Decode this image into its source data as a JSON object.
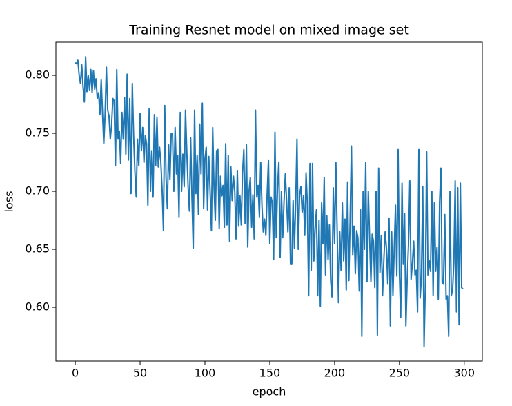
{
  "chart_data": {
    "type": "line",
    "title": "Training Resnet model on mixed image set",
    "xlabel": "epoch",
    "ylabel": "loss",
    "color": "#1f77b4",
    "xlim": [
      -14.95,
      313.95
    ],
    "ylim": [
      0.5536,
      0.8286
    ],
    "xticks": [
      0,
      50,
      100,
      150,
      200,
      250,
      300
    ],
    "yticks": [
      {
        "value": 0.6,
        "label": "0.60"
      },
      0.65,
      {
        "value": 0.7,
        "label": "0.70"
      },
      0.75,
      {
        "value": 0.8,
        "label": "0.80"
      }
    ],
    "x": [
      0,
      1,
      2,
      3,
      4,
      5,
      6,
      7,
      8,
      9,
      10,
      11,
      12,
      13,
      14,
      15,
      16,
      17,
      18,
      19,
      20,
      21,
      22,
      23,
      24,
      25,
      26,
      27,
      28,
      29,
      30,
      31,
      32,
      33,
      34,
      35,
      36,
      37,
      38,
      39,
      40,
      41,
      42,
      43,
      44,
      45,
      46,
      47,
      48,
      49,
      50,
      51,
      52,
      53,
      54,
      55,
      56,
      57,
      58,
      59,
      60,
      61,
      62,
      63,
      64,
      65,
      66,
      67,
      68,
      69,
      70,
      71,
      72,
      73,
      74,
      75,
      76,
      77,
      78,
      79,
      80,
      81,
      82,
      83,
      84,
      85,
      86,
      87,
      88,
      89,
      90,
      91,
      92,
      93,
      94,
      95,
      96,
      97,
      98,
      99,
      100,
      101,
      102,
      103,
      104,
      105,
      106,
      107,
      108,
      109,
      110,
      111,
      112,
      113,
      114,
      115,
      116,
      117,
      118,
      119,
      120,
      121,
      122,
      123,
      124,
      125,
      126,
      127,
      128,
      129,
      130,
      131,
      132,
      133,
      134,
      135,
      136,
      137,
      138,
      139,
      140,
      141,
      142,
      143,
      144,
      145,
      146,
      147,
      148,
      149,
      150,
      151,
      152,
      153,
      154,
      155,
      156,
      157,
      158,
      159,
      160,
      161,
      162,
      163,
      164,
      165,
      166,
      167,
      168,
      169,
      170,
      171,
      172,
      173,
      174,
      175,
      176,
      177,
      178,
      179,
      180,
      181,
      182,
      183,
      184,
      185,
      186,
      187,
      188,
      189,
      190,
      191,
      192,
      193,
      194,
      195,
      196,
      197,
      198,
      199,
      200,
      201,
      202,
      203,
      204,
      205,
      206,
      207,
      208,
      209,
      210,
      211,
      212,
      213,
      214,
      215,
      216,
      217,
      218,
      219,
      220,
      221,
      222,
      223,
      224,
      225,
      226,
      227,
      228,
      229,
      230,
      231,
      232,
      233,
      234,
      235,
      236,
      237,
      238,
      239,
      240,
      241,
      242,
      243,
      244,
      245,
      246,
      247,
      248,
      249,
      250,
      251,
      252,
      253,
      254,
      255,
      256,
      257,
      258,
      259,
      260,
      261,
      262,
      263,
      264,
      265,
      266,
      267,
      268,
      269,
      270,
      271,
      272,
      273,
      274,
      275,
      276,
      277,
      278,
      279,
      280,
      281,
      282,
      283,
      284,
      285,
      286,
      287,
      288,
      289,
      290,
      291,
      292,
      293,
      294,
      295,
      296,
      297,
      298,
      299
    ],
    "values": [
      0.811,
      0.81,
      0.813,
      0.8,
      0.793,
      0.809,
      0.79,
      0.777,
      0.816,
      0.786,
      0.8,
      0.787,
      0.805,
      0.785,
      0.804,
      0.788,
      0.797,
      0.78,
      0.785,
      0.766,
      0.796,
      0.768,
      0.741,
      0.766,
      0.807,
      0.77,
      0.765,
      0.745,
      0.757,
      0.78,
      0.778,
      0.722,
      0.805,
      0.745,
      0.752,
      0.724,
      0.768,
      0.745,
      0.781,
      0.732,
      0.801,
      0.727,
      0.78,
      0.698,
      0.793,
      0.748,
      0.717,
      0.695,
      0.745,
      0.722,
      0.767,
      0.735,
      0.755,
      0.725,
      0.748,
      0.741,
      0.688,
      0.771,
      0.7,
      0.735,
      0.695,
      0.766,
      0.722,
      0.764,
      0.721,
      0.738,
      0.725,
      0.701,
      0.666,
      0.774,
      0.712,
      0.685,
      0.74,
      0.71,
      0.75,
      0.75,
      0.7,
      0.755,
      0.715,
      0.731,
      0.678,
      0.768,
      0.7,
      0.732,
      0.704,
      0.77,
      0.735,
      0.705,
      0.683,
      0.746,
      0.694,
      0.651,
      0.77,
      0.698,
      0.731,
      0.68,
      0.758,
      0.715,
      0.776,
      0.685,
      0.728,
      0.738,
      0.684,
      0.73,
      0.7,
      0.666,
      0.755,
      0.704,
      0.675,
      0.735,
      0.736,
      0.668,
      0.713,
      0.696,
      0.705,
      0.669,
      0.741,
      0.671,
      0.731,
      0.657,
      0.721,
      0.692,
      0.713,
      0.7,
      0.659,
      0.718,
      0.67,
      0.696,
      0.671,
      0.716,
      0.736,
      0.672,
      0.74,
      0.652,
      0.7,
      0.712,
      0.669,
      0.697,
      0.659,
      0.77,
      0.695,
      0.705,
      0.678,
      0.725,
      0.687,
      0.665,
      0.676,
      0.662,
      0.698,
      0.727,
      0.655,
      0.695,
      0.69,
      0.641,
      0.751,
      0.66,
      0.703,
      0.725,
      0.643,
      0.7,
      0.66,
      0.691,
      0.715,
      0.692,
      0.665,
      0.703,
      0.637,
      0.637,
      0.692,
      0.651,
      0.69,
      0.745,
      0.65,
      0.697,
      0.704,
      0.682,
      0.696,
      0.662,
      0.716,
      0.688,
      0.61,
      0.724,
      0.632,
      0.724,
      0.64,
      0.668,
      0.684,
      0.61,
      0.675,
      0.601,
      0.69,
      0.655,
      0.712,
      0.628,
      0.679,
      0.641,
      0.671,
      0.623,
      0.609,
      0.703,
      0.655,
      0.725,
      0.665,
      0.604,
      0.665,
      0.632,
      0.69,
      0.64,
      0.676,
      0.615,
      0.708,
      0.623,
      0.676,
      0.739,
      0.645,
      0.67,
      0.629,
      0.666,
      0.66,
      0.614,
      0.684,
      0.575,
      0.7,
      0.65,
      0.725,
      0.622,
      0.7,
      0.66,
      0.622,
      0.663,
      0.657,
      0.617,
      0.7,
      0.576,
      0.72,
      0.63,
      0.662,
      0.61,
      0.641,
      0.665,
      0.651,
      0.62,
      0.677,
      0.584,
      0.665,
      0.61,
      0.65,
      0.688,
      0.627,
      0.736,
      0.63,
      0.591,
      0.707,
      0.637,
      0.681,
      0.584,
      0.624,
      0.654,
      0.709,
      0.624,
      0.638,
      0.657,
      0.628,
      0.632,
      0.596,
      0.736,
      0.608,
      0.627,
      0.704,
      0.566,
      0.62,
      0.734,
      0.628,
      0.64,
      0.631,
      0.7,
      0.61,
      0.69,
      0.631,
      0.652,
      0.607,
      0.691,
      0.72,
      0.621,
      0.62,
      0.68,
      0.607,
      0.61,
      0.575,
      0.7,
      0.61,
      0.615,
      0.639,
      0.709,
      0.596,
      0.703,
      0.585,
      0.707,
      0.617,
      0.616
    ]
  }
}
